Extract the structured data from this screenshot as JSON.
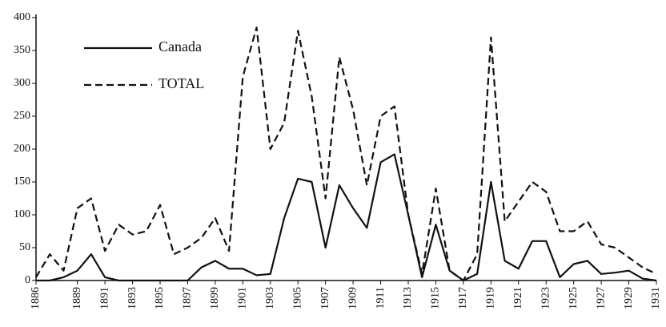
{
  "chart_data": {
    "type": "line",
    "x": [
      1886,
      1887,
      1888,
      1889,
      1890,
      1891,
      1892,
      1893,
      1894,
      1895,
      1896,
      1897,
      1898,
      1899,
      1900,
      1901,
      1902,
      1903,
      1904,
      1905,
      1906,
      1907,
      1908,
      1909,
      1910,
      1911,
      1912,
      1913,
      1914,
      1915,
      1916,
      1917,
      1918,
      1919,
      1920,
      1921,
      1922,
      1923,
      1924,
      1925,
      1926,
      1927,
      1928,
      1929,
      1930,
      1931
    ],
    "series": [
      {
        "name": "Canada",
        "color": "#111111",
        "dashed": false,
        "values": [
          0,
          0,
          5,
          15,
          40,
          5,
          0,
          0,
          0,
          0,
          0,
          0,
          20,
          30,
          18,
          18,
          8,
          10,
          95,
          155,
          150,
          50,
          145,
          110,
          80,
          180,
          192,
          100,
          5,
          85,
          15,
          0,
          10,
          150,
          30,
          18,
          60,
          60,
          5,
          25,
          30,
          10,
          12,
          15,
          3,
          0
        ]
      },
      {
        "name": "TOTAL",
        "color": "#111111",
        "dashed": true,
        "values": [
          5,
          40,
          15,
          110,
          125,
          45,
          85,
          70,
          75,
          115,
          40,
          50,
          65,
          95,
          45,
          310,
          385,
          200,
          240,
          380,
          280,
          125,
          340,
          260,
          145,
          250,
          265,
          100,
          10,
          140,
          15,
          0,
          40,
          370,
          90,
          120,
          150,
          135,
          75,
          75,
          90,
          55,
          50,
          35,
          20,
          10
        ]
      }
    ],
    "xlim": [
      1886,
      1931
    ],
    "xticks": [
      1886,
      1889,
      1891,
      1893,
      1895,
      1897,
      1899,
      1901,
      1903,
      1905,
      1907,
      1909,
      1911,
      1913,
      1915,
      1917,
      1919,
      1921,
      1923,
      1925,
      1927,
      1929,
      1931
    ],
    "ylim": [
      0,
      400
    ],
    "yticks": [
      0,
      50,
      100,
      150,
      200,
      250,
      300,
      350,
      400
    ],
    "grid": false,
    "legend": "upper left"
  }
}
